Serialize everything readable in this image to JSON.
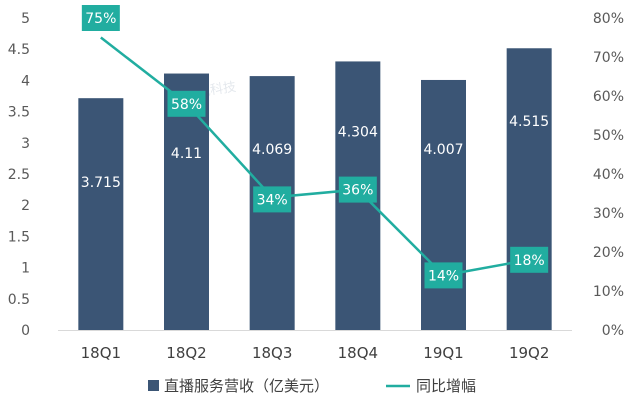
{
  "chart_data": {
    "type": "bar",
    "categories": [
      "18Q1",
      "18Q2",
      "18Q3",
      "18Q4",
      "19Q1",
      "19Q2"
    ],
    "series": [
      {
        "name": "直播服务营收（亿美元）",
        "type": "bar",
        "axis": "left",
        "values": [
          3.715,
          4.11,
          4.069,
          4.304,
          4.007,
          4.515
        ],
        "labels": [
          "3.715",
          "4.11",
          "4.069",
          "4.304",
          "4.007",
          "4.515"
        ]
      },
      {
        "name": "同比增幅",
        "type": "line",
        "axis": "right",
        "values": [
          0.75,
          0.58,
          0.34,
          0.36,
          0.14,
          0.18
        ],
        "labels": [
          "75%",
          "58%",
          "34%",
          "36%",
          "14%",
          "18%"
        ]
      }
    ],
    "y_left": {
      "min": 0,
      "max": 5,
      "ticks": [
        "0",
        "0.5",
        "1",
        "1.5",
        "2",
        "2.5",
        "3",
        "3.5",
        "4",
        "4.5",
        "5"
      ]
    },
    "y_right": {
      "min": 0,
      "max": 0.8,
      "ticks": [
        "0%",
        "10%",
        "20%",
        "30%",
        "40%",
        "50%",
        "60%",
        "70%",
        "80%"
      ]
    },
    "grid": false,
    "legend": "bottom",
    "colors": {
      "bar": "#3b5575",
      "line": "#21ada0",
      "label_box": "#21ada0",
      "label_text": "#ffffff",
      "tick_text": "#595959"
    }
  },
  "watermark": "腾讯科技"
}
